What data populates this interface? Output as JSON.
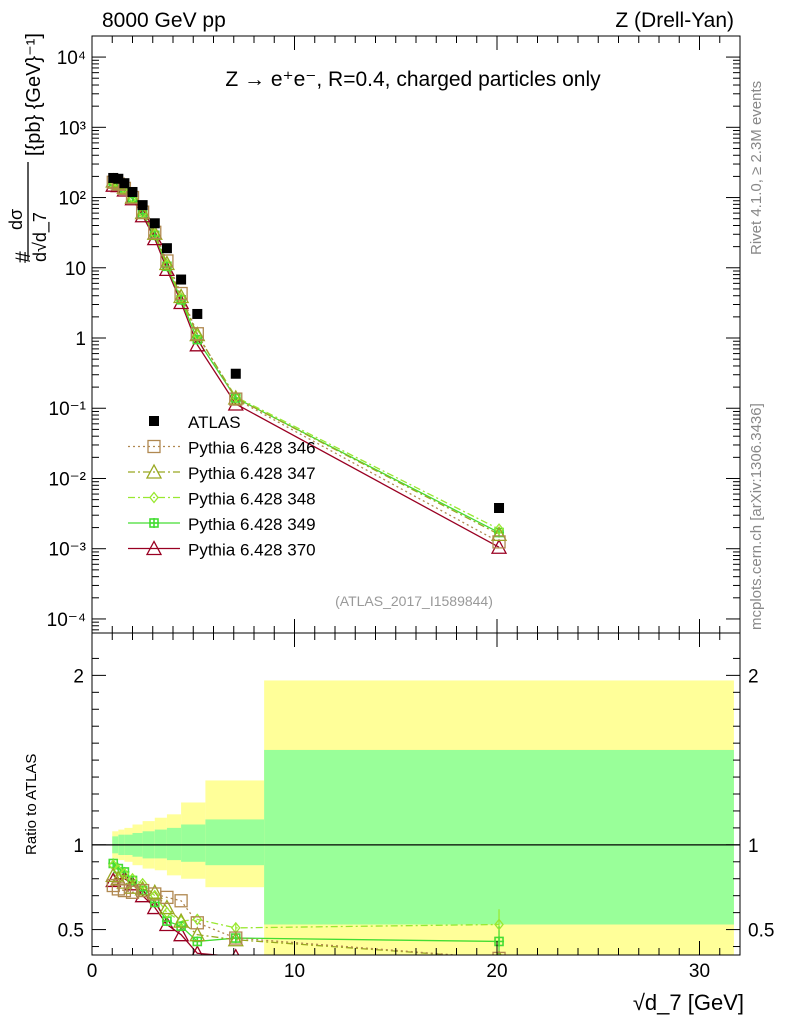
{
  "header": {
    "left": "8000 GeV pp",
    "right": "Z (Drell-Yan)"
  },
  "side_labels": {
    "rivet": "Rivet 4.1.0, ≥ 2.3M events",
    "mcplots": "mcplots.cern.ch [arXiv:1306.3436]"
  },
  "watermark": "(ATLAS_2017_I1589844)",
  "chart_data": [
    {
      "type": "scatter",
      "panel": "main",
      "title": "Z → e⁺e⁻, R=0.4, charged particles only",
      "ylabel": "#dσ/d√d_7 [{pb} {GeV}⁻¹]",
      "xlim": [
        0,
        32
      ],
      "ylim_log10": [
        -4.2,
        4.3
      ],
      "yscale": "log",
      "y_ticks": [
        {
          "exp": -4,
          "label": "10⁻⁴"
        },
        {
          "exp": -3,
          "label": "10⁻³"
        },
        {
          "exp": -2,
          "label": "10⁻²"
        },
        {
          "exp": -1,
          "label": "10⁻¹"
        },
        {
          "exp": 0,
          "label": "1"
        },
        {
          "exp": 1,
          "label": "10"
        },
        {
          "exp": 2,
          "label": "10²"
        },
        {
          "exp": 3,
          "label": "10³"
        },
        {
          "exp": 4,
          "label": "10⁴"
        }
      ],
      "legend": [
        "ATLAS",
        "Pythia 6.428 346",
        "Pythia 6.428 347",
        "Pythia 6.428 348",
        "Pythia 6.428 349",
        "Pythia 6.428 370"
      ],
      "x": [
        1.05,
        1.3,
        1.6,
        2.0,
        2.5,
        3.1,
        3.7,
        4.4,
        5.2,
        7.1,
        20.1
      ],
      "data": {
        "name": "ATLAS",
        "color": "#000000",
        "values": [
          190,
          185,
          160,
          120,
          78,
          43,
          19,
          6.8,
          2.2,
          0.31,
          0.0038
        ]
      },
      "series": [
        {
          "name": "Pythia 6.428 346",
          "color": "#b08850",
          "marker": "square",
          "dash": "2,3",
          "values": [
            165,
            155,
            135,
            100,
            62,
            32,
            12.5,
            4.3,
            1.15,
            0.135,
            0.00125
          ]
        },
        {
          "name": "Pythia 6.428 347",
          "color": "#99a820",
          "marker": "triangle",
          "dash": "7,3,2,3",
          "values": [
            172,
            162,
            140,
            102,
            61,
            31,
            11.5,
            3.9,
            1.12,
            0.14,
            0.0016
          ]
        },
        {
          "name": "Pythia 6.428 348",
          "color": "#99e830",
          "marker": "diamond",
          "dash": "7,3,2,3",
          "values": [
            168,
            158,
            136,
            99,
            60,
            30,
            11,
            3.7,
            1.1,
            0.145,
            0.0019
          ]
        },
        {
          "name": "Pythia 6.428 349",
          "color": "#44dd33",
          "marker": "cross",
          "dash": "",
          "values": [
            170,
            160,
            138,
            100,
            59,
            29,
            10.5,
            3.5,
            0.95,
            0.14,
            0.0017
          ]
        },
        {
          "name": "Pythia 6.428 370",
          "color": "#990022",
          "marker": "triangle",
          "dash": "",
          "values": [
            150,
            148,
            128,
            96,
            55,
            26,
            9.5,
            3.2,
            0.8,
            0.115,
            0.00105
          ]
        }
      ]
    },
    {
      "type": "scatter",
      "panel": "ratio",
      "ylabel": "Ratio to ATLAS",
      "xlabel": "√d_7 [GeV]",
      "xlim": [
        0,
        32
      ],
      "ylim": [
        0.35,
        2.25
      ],
      "x_ticks": [
        0,
        10,
        20,
        30
      ],
      "y_ticks": [
        0.5,
        1,
        2
      ],
      "bands": [
        {
          "x0": 1.0,
          "x1": 1.3,
          "green": [
            0.95,
            1.05
          ],
          "yellow": [
            0.92,
            1.08
          ]
        },
        {
          "x0": 1.3,
          "x1": 1.6,
          "green": [
            0.94,
            1.06
          ],
          "yellow": [
            0.91,
            1.09
          ]
        },
        {
          "x0": 1.6,
          "x1": 2.0,
          "green": [
            0.94,
            1.06
          ],
          "yellow": [
            0.9,
            1.1
          ]
        },
        {
          "x0": 2.0,
          "x1": 2.5,
          "green": [
            0.93,
            1.07
          ],
          "yellow": [
            0.88,
            1.12
          ]
        },
        {
          "x0": 2.5,
          "x1": 3.1,
          "green": [
            0.92,
            1.08
          ],
          "yellow": [
            0.86,
            1.14
          ]
        },
        {
          "x0": 3.1,
          "x1": 3.7,
          "green": [
            0.92,
            1.09
          ],
          "yellow": [
            0.85,
            1.16
          ]
        },
        {
          "x0": 3.7,
          "x1": 4.4,
          "green": [
            0.91,
            1.1
          ],
          "yellow": [
            0.82,
            1.18
          ]
        },
        {
          "x0": 4.4,
          "x1": 5.6,
          "green": [
            0.9,
            1.12
          ],
          "yellow": [
            0.8,
            1.25
          ]
        },
        {
          "x0": 5.6,
          "x1": 8.5,
          "green": [
            0.88,
            1.15
          ],
          "yellow": [
            0.75,
            1.38
          ]
        },
        {
          "x0": 8.5,
          "x1": 31.7,
          "green": [
            0.53,
            1.56
          ],
          "yellow": [
            0.35,
            1.97
          ]
        }
      ],
      "series": [
        {
          "name": "Pythia 6.428 346",
          "values": [
            0.76,
            0.74,
            0.73,
            0.72,
            0.73,
            0.71,
            0.69,
            0.67,
            0.54,
            0.45,
            0.33
          ]
        },
        {
          "name": "Pythia 6.428 347",
          "values": [
            0.82,
            0.8,
            0.78,
            0.75,
            0.74,
            0.72,
            0.63,
            0.55,
            0.47,
            0.44,
            0.33
          ]
        },
        {
          "name": "Pythia 6.428 348",
          "values": [
            0.88,
            0.85,
            0.83,
            0.8,
            0.77,
            0.7,
            0.6,
            0.55,
            0.56,
            0.51,
            0.53
          ]
        },
        {
          "name": "Pythia 6.428 349",
          "values": [
            0.89,
            0.86,
            0.84,
            0.79,
            0.73,
            0.66,
            0.55,
            0.52,
            0.43,
            0.45,
            0.43
          ]
        },
        {
          "name": "Pythia 6.428 370",
          "values": [
            0.79,
            0.8,
            0.8,
            0.77,
            0.7,
            0.63,
            0.53,
            0.47,
            0.36,
            0.34,
            0.28
          ]
        }
      ]
    }
  ]
}
